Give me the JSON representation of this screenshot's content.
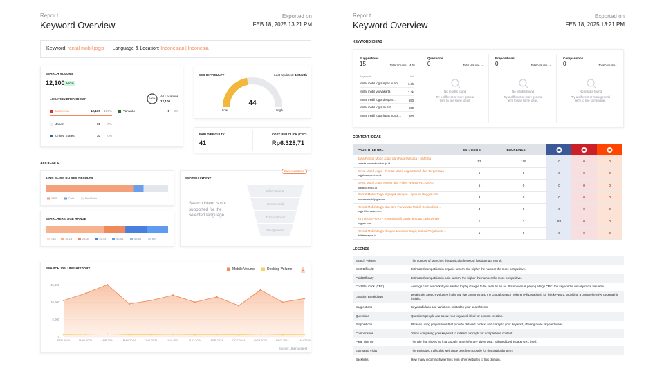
{
  "left": {
    "header": {
      "kicker": "Repor t",
      "title": "Keyword Overview",
      "exported_label": "Exported on",
      "exported_date": "FEB 18, 2025 13:21 PM"
    },
    "keyword_bar": {
      "keyword_label": "Keyword:",
      "keyword": "rental mobil jogja",
      "location_label": "Language & Location:",
      "language": "Indonesian",
      "separator": "|",
      "location": "Indonesia"
    },
    "search_volume": {
      "label": "SEARCH VOLUME",
      "value": "12,100",
      "badge": "HIGH",
      "breakdown_title": "LOCATION BREAKDOWN",
      "ring_label": "100%",
      "all_locations_label": "All Locations",
      "all_locations_value": "12,100",
      "locations": [
        {
          "country": "Indonesia",
          "volume": "12,100",
          "share": 100,
          "share_label": "100%"
        },
        {
          "country": "Vanuatu",
          "volume": "0",
          "share": 0,
          "share_label": "0%"
        },
        {
          "country": "Japan",
          "volume": "10",
          "share": 0,
          "share_label": "0%"
        },
        {
          "country": "United States",
          "volume": "10",
          "share": 0,
          "share_label": "0%"
        }
      ]
    },
    "seo_difficulty": {
      "label": "SEO DIFFICULTY",
      "updated_label": "Last Updated:",
      "updated_value": "1 Month",
      "value": 44,
      "scale": [
        0,
        100
      ],
      "min_label": "Low",
      "max_label": "High"
    },
    "paid_difficulty": {
      "label": "PAID DIFFICULTY",
      "value": "41"
    },
    "cpc": {
      "label": "COST PER CLICK (CPC)",
      "value": "Rp6.328,71"
    },
    "audience": {
      "title": "AUDIENCE",
      "clicks": {
        "title": "6,729 CLICK ON SEO RESULTS",
        "categories": [
          "SEO",
          "Paid",
          "No Clicks"
        ],
        "values": [
          72,
          8,
          20
        ],
        "colors": [
          "#f4a07a",
          "#6d9eeb",
          "#e3e6ea"
        ]
      },
      "age": {
        "title": "SEARCHERS' AGE RANGE",
        "categories": [
          "<18",
          "18-24",
          "25-34",
          "35-44",
          "45-54",
          "55-64",
          "65+"
        ],
        "values": [
          0,
          48,
          17,
          18,
          17,
          0,
          0
        ],
        "colors": [
          "#ffd7c4",
          "#f7b38f",
          "#f08a5d",
          "#4a7fe0",
          "#5f9cf0",
          "#8fbcf5",
          "#c6dcfa"
        ]
      }
    },
    "intent": {
      "title": "SEARCH INTENT",
      "badge": "EARLY ACCESS",
      "message": "Search intent is not supported for the selected language.",
      "stages": [
        "Informational",
        "Commercial",
        "Transactional",
        "Navigational"
      ]
    },
    "history": {
      "type": "line",
      "title": "SEARCH VOLUME HISTORY",
      "x": [
        "FEB 2024",
        "MAR 2024",
        "APR 2024",
        "MAY 2024",
        "JUN 2024",
        "JUL 2024",
        "AUG 2024",
        "SEP 2024",
        "OCT 2024",
        "NOV 2024",
        "DEC 2024",
        "JAN 2025"
      ],
      "series": [
        {
          "name": "Mobile Volume",
          "color": "#f08a5d",
          "values": [
            10500,
            12500,
            15000,
            9500,
            10500,
            12000,
            10000,
            11500,
            9000,
            13500,
            10000,
            11000
          ]
        },
        {
          "name": "Desktop Volume",
          "color": "#f7d26a",
          "values": [
            700,
            800,
            900,
            700,
            700,
            800,
            700,
            750,
            650,
            850,
            700,
            750
          ]
        }
      ],
      "ylim": [
        0,
        17000
      ],
      "yticks": [
        0,
        {
          "value": 5000,
          "label": "5,000"
        },
        {
          "value": 10000,
          "label": "10,000"
        },
        {
          "value": 15000,
          "label": "15,000"
        }
      ],
      "grid": true,
      "source": "Source: Ubersuggest"
    }
  },
  "right": {
    "header": {
      "kicker": "Repor t",
      "title": "Keyword Overview",
      "exported_label": "Exported on",
      "exported_date": "FEB 18, 2025 13:21 PM"
    },
    "keyword_ideas": {
      "title": "KEYWORD IDEAS",
      "cards": [
        {
          "label": "Suggestions",
          "count": "15",
          "total_label": "Total Volume",
          "total": "4.6k",
          "list_head": [
            "Keywords",
            "Vol"
          ],
          "rows": [
            [
              "rental mobil jogja lepas kunci",
              "1.3k"
            ],
            [
              "rental mobil yogyakarta",
              "1.3k"
            ],
            [
              "rental mobil jogja dengan...",
              "590"
            ],
            [
              "rental mobil jogja murah",
              "590"
            ],
            [
              "rental mobil jogja lepas kunci ...",
              "260"
            ]
          ]
        },
        {
          "label": "Questions",
          "count": "0",
          "total_label": "Total Volume",
          "total": "-",
          "empty_title": "No results found",
          "empty_text": "Try a different or more general term to see some ideas."
        },
        {
          "label": "Prepositions",
          "count": "0",
          "total_label": "Total Volume",
          "total": "-",
          "empty_title": "No results found",
          "empty_text": "Try a different or more general term to see some ideas."
        },
        {
          "label": "Comparisons",
          "count": "0",
          "total_label": "Total Volume",
          "total": "-",
          "empty_title": "No results found",
          "empty_text": "Try a different or more general term to see some ideas."
        }
      ]
    },
    "content_ideas": {
      "title": "CONTENT IDEAS",
      "columns": [
        "PAGE TITLE URL",
        "EST. VISITS",
        "BACKLINKS"
      ],
      "rows": [
        {
          "title": "Jasa Rental Mobil Jogja dan Paket Wisata - SMEsta",
          "url": "smesta.kemenkopukm.go.id",
          "visits": "53",
          "backlinks": "105",
          "facebook": "0",
          "pinterest": "0",
          "reddit": "0"
        },
        {
          "title": "Sewa Mobil Jogja - Rental Mobil Jogja Murah dan Terpercaya",
          "url": "jogjatransport-t.co.id",
          "visits": "5",
          "backlinks": "0",
          "facebook": "0",
          "pinterest": "0",
          "reddit": "0"
        },
        {
          "title": "Sewa Mobil Jogja Murah dan Paket Wisata Rp.108Rb",
          "url": "jogjatouran.co.id",
          "visits": "5",
          "backlinks": "0",
          "facebook": "0",
          "pinterest": "0",
          "reddit": "0"
        },
        {
          "title": "Rental Mobil Jogja Nganjuk dengan Layanan Unggul dan...",
          "url": "infosewamobiljogja.com",
          "visits": "3",
          "backlinks": "0",
          "facebook": "0",
          "pinterest": "0",
          "reddit": "0"
        },
        {
          "title": "Rental Mobil Jogja dan Biro Pariwisata Mobil, Berkualitas ...",
          "url": "jogja.tribunnews.com",
          "visits": "3",
          "backlinks": "0",
          "facebook": "0",
          "pinterest": "0",
          "reddit": "0"
        },
        {
          "title": "24 TRANSPORT - Rental Mobil Jogja dengan Lady Driver",
          "url": "yogyes.com",
          "visits": "1",
          "backlinks": "3",
          "facebook": "83",
          "pinterest": "0",
          "reddit": "0"
        },
        {
          "title": "Rental Mobil Jogja dengan Layanan Supir, Solusi Perjalanan ...",
          "url": "deltatransport.id",
          "visits": "1",
          "backlinks": "0",
          "facebook": "0",
          "pinterest": "0",
          "reddit": "0"
        }
      ]
    },
    "legends": {
      "title": "LEGENDS",
      "rows": [
        [
          "Search Volume",
          "The number of searches this particular keyword has during a month."
        ],
        [
          "SEO Difficulty",
          "Estimated competition in organic search, the higher the number the more competitive."
        ],
        [
          "Paid Difficulty",
          "Estimated competition in paid search, the higher the number the more competitive."
        ],
        [
          "Cost Per Click (CPC)",
          "Average cost per click if you wanted to pay Google to be seen as an ad. If someone is paying a high CPC, the keyword is usually more valuable."
        ],
        [
          "Location Breakdown",
          "Details the Search Volumes in the top five countries and the Global Search Volume (All Locations) for this keyword, providing a comprehensive geographic insight."
        ],
        [
          "Suggestions",
          "Keyword ideas and variations related to your search term."
        ],
        [
          "Questions",
          "Questions people ask about your keyword, ideal for content creation."
        ],
        [
          "Prepositions",
          "Phrases using prepositions that provide detailed context and clarity to your keyword, offering more targeted ideas."
        ],
        [
          "Comparisons",
          "Terms comparing your keyword to related concepts for comparative content."
        ],
        [
          "Page Title Url",
          "The title that shows up in a Google search for any given URL, followed by the page URL itself."
        ],
        [
          "Estimated Visits",
          "The estimated traffic this web page gets from Google for this particular term."
        ],
        [
          "Backlinks",
          "How many incoming hyperlinks from other websites to this domain."
        ]
      ]
    }
  }
}
